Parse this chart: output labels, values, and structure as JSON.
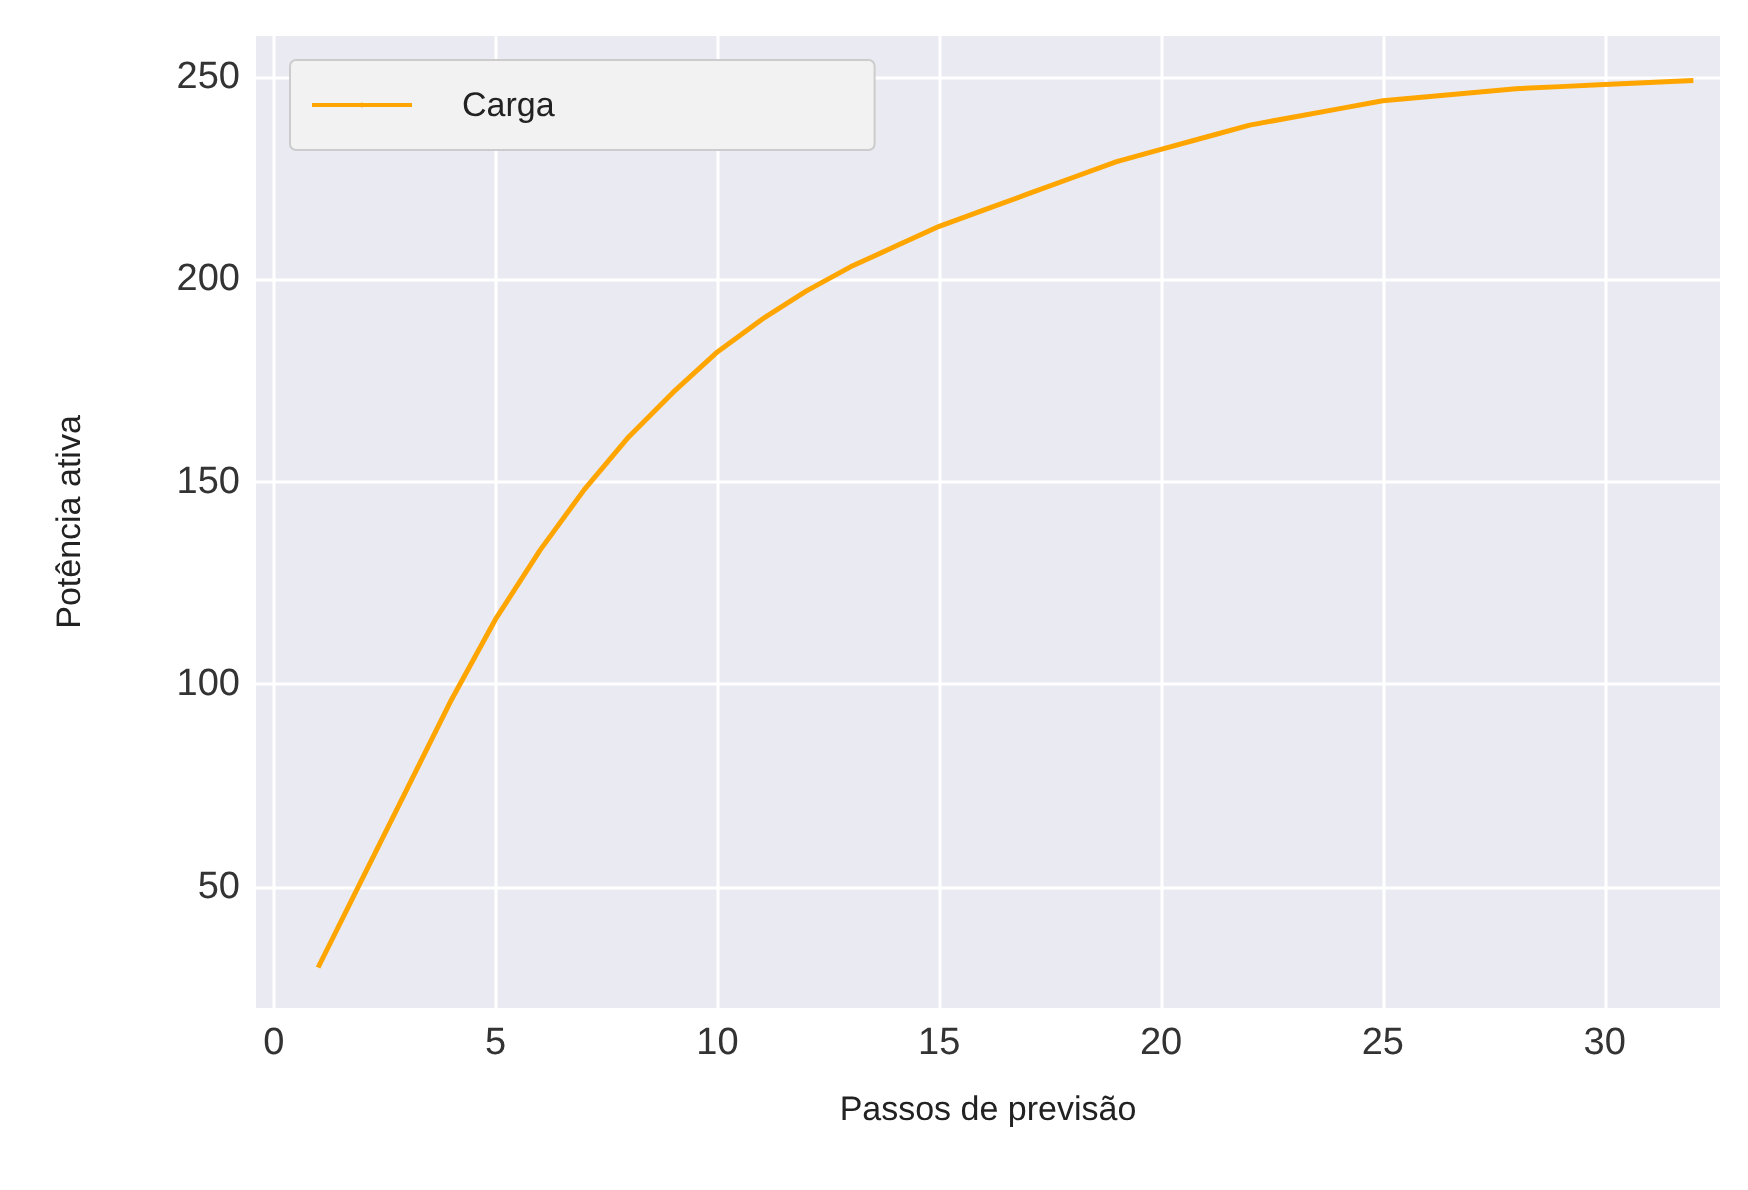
{
  "chart_data": {
    "type": "line",
    "xlabel": "Passos de previsão",
    "ylabel": "Potência ativa",
    "x": [
      1,
      2,
      3,
      4,
      5,
      6,
      7,
      8,
      9,
      10,
      11,
      12,
      13,
      14,
      15,
      16,
      17,
      18,
      19,
      20,
      21,
      22,
      23,
      24,
      25,
      26,
      27,
      28,
      29,
      30,
      31,
      32
    ],
    "series": [
      {
        "name": "Carga",
        "color": "#ffa500",
        "values": [
          30,
          52,
          74,
          96,
          116,
          133,
          148,
          161,
          172,
          182,
          190,
          197,
          203,
          208,
          213,
          217,
          221,
          225,
          229,
          232,
          235,
          238,
          240,
          242,
          244,
          245,
          246,
          247,
          247.5,
          248,
          248.5,
          249
        ]
      }
    ],
    "xlim": [
      -0.4,
      32.6
    ],
    "ylim": [
      20,
      260
    ],
    "xticks": [
      0,
      5,
      10,
      15,
      20,
      25,
      30
    ],
    "yticks": [
      50,
      100,
      150,
      200,
      250
    ],
    "grid": true,
    "legend": "top left",
    "marker": "none",
    "line_style": "solid"
  }
}
